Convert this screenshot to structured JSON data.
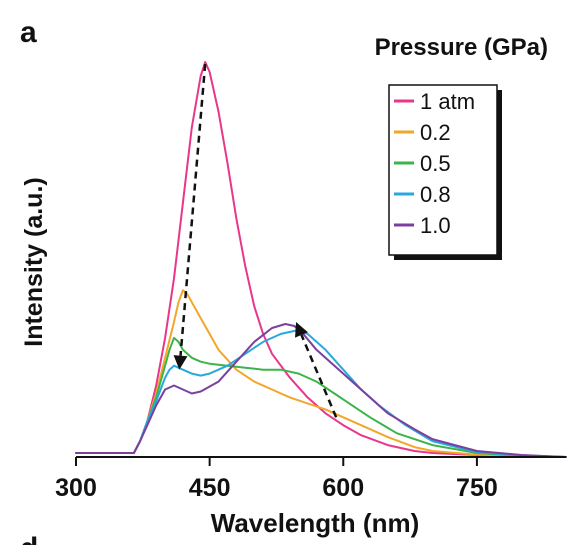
{
  "panel_label": "a",
  "next_panel_label": "d",
  "chart_data": {
    "type": "line",
    "xlabel": "Wavelength (nm)",
    "ylabel": "Intensity (a.u.)",
    "xlim": [
      300,
      850
    ],
    "ylim": [
      0,
      1.0
    ],
    "x_ticks": [
      300,
      450,
      600,
      750
    ],
    "y_ticks_shown": false,
    "legend_title": "Pressure (GPa)",
    "legend_placement": "top-right",
    "annotations": [
      {
        "type": "dashed-arrow",
        "from": [
          445,
          0.99
        ],
        "to": [
          416,
          0.22
        ]
      },
      {
        "type": "dashed-arrow",
        "from": [
          592,
          0.1
        ],
        "to": [
          547,
          0.34
        ]
      }
    ],
    "series": [
      {
        "name": "1 atm",
        "color": "#e8378a",
        "x": [
          300,
          365,
          372,
          380,
          390,
          400,
          410,
          420,
          430,
          440,
          445,
          450,
          460,
          470,
          480,
          490,
          500,
          510,
          520,
          540,
          560,
          580,
          600,
          620,
          650,
          680,
          700,
          750,
          800,
          850
        ],
        "y": [
          0.01,
          0.01,
          0.04,
          0.09,
          0.18,
          0.3,
          0.45,
          0.64,
          0.83,
          0.96,
          0.995,
          0.97,
          0.87,
          0.74,
          0.6,
          0.48,
          0.38,
          0.31,
          0.26,
          0.2,
          0.15,
          0.11,
          0.08,
          0.055,
          0.03,
          0.015,
          0.01,
          0.005,
          0.002,
          0.0
        ]
      },
      {
        "name": "0.2",
        "color": "#f2a62b",
        "x": [
          300,
          365,
          372,
          380,
          390,
          400,
          410,
          415,
          420,
          425,
          430,
          440,
          450,
          460,
          480,
          500,
          520,
          540,
          560,
          580,
          600,
          620,
          650,
          680,
          700,
          750,
          800,
          850
        ],
        "y": [
          0.01,
          0.01,
          0.04,
          0.09,
          0.16,
          0.25,
          0.34,
          0.39,
          0.42,
          0.41,
          0.39,
          0.35,
          0.31,
          0.27,
          0.22,
          0.19,
          0.17,
          0.15,
          0.135,
          0.12,
          0.1,
          0.08,
          0.05,
          0.025,
          0.015,
          0.006,
          0.002,
          0.0
        ]
      },
      {
        "name": "0.5",
        "color": "#3bb54a",
        "x": [
          300,
          365,
          372,
          380,
          390,
          400,
          405,
          410,
          415,
          420,
          430,
          440,
          450,
          470,
          490,
          510,
          530,
          550,
          570,
          590,
          610,
          630,
          660,
          700,
          750,
          800,
          850
        ],
        "y": [
          0.01,
          0.01,
          0.04,
          0.09,
          0.15,
          0.23,
          0.27,
          0.3,
          0.29,
          0.27,
          0.25,
          0.24,
          0.235,
          0.23,
          0.225,
          0.22,
          0.22,
          0.21,
          0.19,
          0.16,
          0.13,
          0.1,
          0.06,
          0.03,
          0.01,
          0.003,
          0.0
        ]
      },
      {
        "name": "0.8",
        "color": "#29a8df",
        "x": [
          300,
          365,
          372,
          380,
          390,
          400,
          405,
          410,
          420,
          430,
          440,
          450,
          470,
          490,
          510,
          530,
          550,
          560,
          580,
          600,
          620,
          640,
          670,
          700,
          750,
          800,
          850
        ],
        "y": [
          0.01,
          0.01,
          0.04,
          0.09,
          0.14,
          0.2,
          0.22,
          0.23,
          0.22,
          0.21,
          0.205,
          0.21,
          0.23,
          0.26,
          0.29,
          0.31,
          0.32,
          0.31,
          0.27,
          0.22,
          0.17,
          0.13,
          0.08,
          0.04,
          0.012,
          0.004,
          0.0
        ]
      },
      {
        "name": "1.0",
        "color": "#7b3f9e",
        "x": [
          300,
          365,
          372,
          380,
          390,
          400,
          410,
          420,
          430,
          440,
          460,
          480,
          500,
          520,
          535,
          545,
          555,
          570,
          590,
          610,
          630,
          650,
          680,
          700,
          750,
          800,
          850
        ],
        "y": [
          0.01,
          0.01,
          0.04,
          0.08,
          0.13,
          0.17,
          0.18,
          0.17,
          0.16,
          0.165,
          0.19,
          0.24,
          0.29,
          0.325,
          0.335,
          0.33,
          0.31,
          0.27,
          0.23,
          0.19,
          0.15,
          0.11,
          0.07,
          0.045,
          0.015,
          0.005,
          0.0
        ]
      }
    ]
  }
}
